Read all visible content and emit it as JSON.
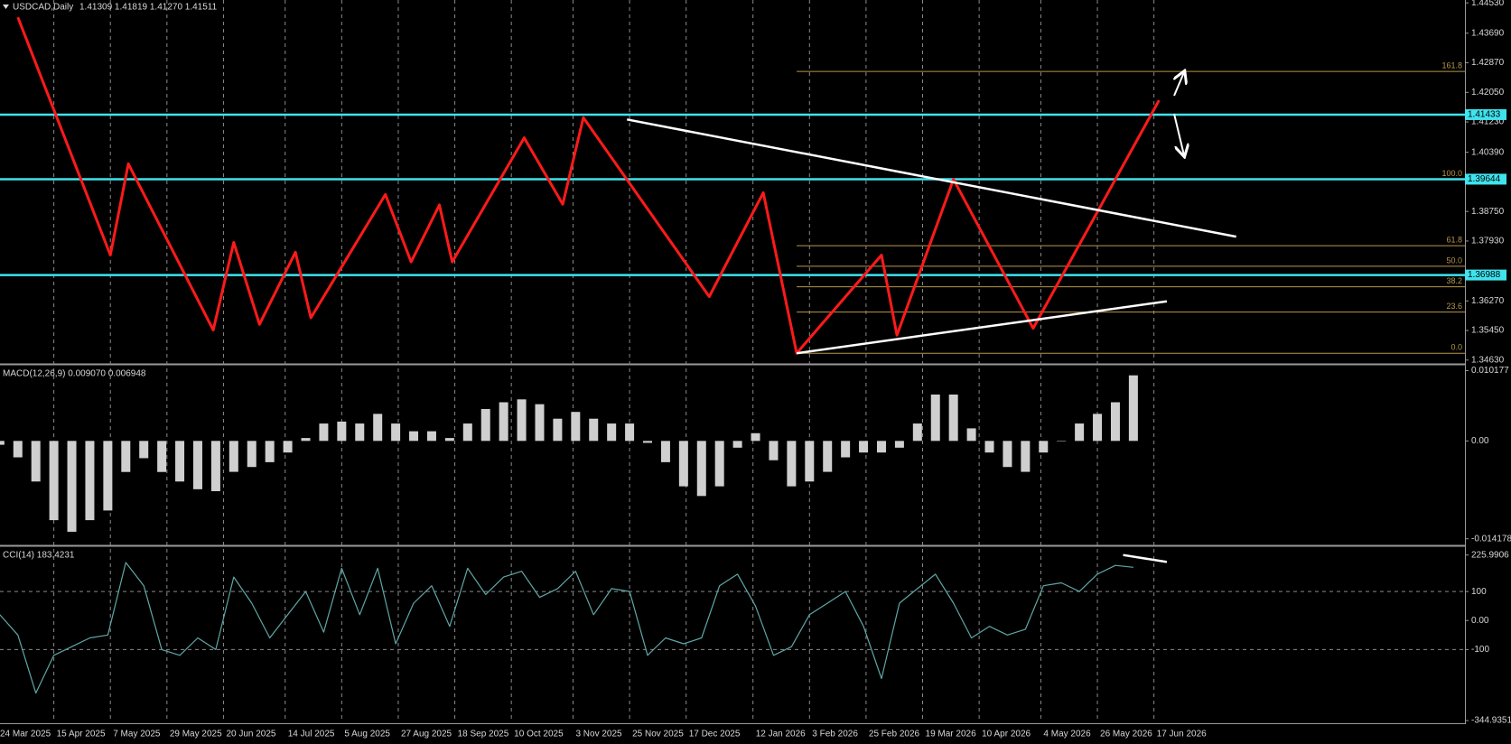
{
  "chart_data": [
    {
      "type": "line",
      "title": "USDCAD,Daily",
      "subtitle": "1.41309 1.41819 1.41270 1.41511",
      "x": [
        "2025-04-01",
        "2025-05-07",
        "2025-05-14",
        "2025-06-16",
        "2025-06-24",
        "2025-07-04",
        "2025-07-18",
        "2025-07-24",
        "2025-08-22",
        "2025-09-01",
        "2025-09-12",
        "2025-09-17",
        "2025-10-15",
        "2025-10-30",
        "2025-11-07",
        "2025-12-26",
        "2026-01-16",
        "2026-01-29",
        "2026-03-03",
        "2026-03-09",
        "2026-03-31",
        "2026-05-01",
        "2026-06-19"
      ],
      "values": [
        1.4413,
        1.3754,
        1.4007,
        1.3546,
        1.3789,
        1.3562,
        1.3762,
        1.358,
        1.3922,
        1.3735,
        1.3893,
        1.3735,
        1.4079,
        1.3895,
        1.4135,
        1.3639,
        1.3927,
        1.3482,
        1.3754,
        1.3532,
        1.3964,
        1.3551,
        1.4183
      ],
      "color": "#ff1a1a",
      "xlim": [
        "2025-03-24",
        "2026-10-16"
      ],
      "xticks": [
        {
          "value": "2025-03-24",
          "label": "24 Mar 2025"
        },
        {
          "value": "2025-04-15",
          "label": "15 Apr 2025"
        },
        {
          "value": "2025-05-07",
          "label": "7 May 2025"
        },
        {
          "value": "2025-05-29",
          "label": "29 May 2025"
        },
        {
          "value": "2025-06-20",
          "label": "20 Jun 2025"
        },
        {
          "value": "2025-07-14",
          "label": "14 Jul 2025"
        },
        {
          "value": "2025-08-05",
          "label": "5 Aug 2025"
        },
        {
          "value": "2025-08-27",
          "label": "27 Aug 2025"
        },
        {
          "value": "2025-09-18",
          "label": "18 Sep 2025"
        },
        {
          "value": "2025-10-10",
          "label": "10 Oct 2025"
        },
        {
          "value": "2025-11-03",
          "label": "3 Nov 2025"
        },
        {
          "value": "2025-11-25",
          "label": "25 Nov 2025"
        },
        {
          "value": "2025-12-17",
          "label": "17 Dec 2025"
        },
        {
          "value": "2026-01-12",
          "label": "12 Jan 2026"
        },
        {
          "value": "2026-02-03",
          "label": "3 Feb 2026"
        },
        {
          "value": "2026-02-25",
          "label": "25 Feb 2026"
        },
        {
          "value": "2026-03-19",
          "label": "19 Mar 2026"
        },
        {
          "value": "2026-04-10",
          "label": "10 Apr 2026"
        },
        {
          "value": "2026-05-04",
          "label": "4 May 2026"
        },
        {
          "value": "2026-05-26",
          "label": "26 May 2026"
        },
        {
          "value": "2026-06-17",
          "label": "17 Jun 2026"
        }
      ],
      "grid": "x",
      "ylim": [
        1.3455,
        1.4461
      ],
      "yticks": [
        {
          "value": 1.4453,
          "label": "1.44530"
        },
        {
          "value": 1.4369,
          "label": "1.43690"
        },
        {
          "value": 1.4287,
          "label": "1.42870"
        },
        {
          "value": 1.4205,
          "label": "1.42050"
        },
        {
          "value": 1.4123,
          "label": "1.41230"
        },
        {
          "value": 1.4039,
          "label": "1.40390"
        },
        {
          "value": 1.3875,
          "label": "1.38750"
        },
        {
          "value": 1.3793,
          "label": "1.37930"
        },
        {
          "value": 1.3627,
          "label": "1.36270"
        },
        {
          "value": 1.3545,
          "label": "1.35450"
        },
        {
          "value": 1.3463,
          "label": "1.34630"
        }
      ],
      "levels": [
        {
          "value": 1.41433,
          "label": "1.41433"
        },
        {
          "value": 1.39644,
          "label": "1.39644"
        },
        {
          "value": 1.36988,
          "label": "1.36988"
        }
      ],
      "level_color": "#3fe3ee",
      "fibonacci": {
        "color": "#b8964a",
        "levels": [
          {
            "value": 1.4263,
            "label": "161.8"
          },
          {
            "value": 1.3964,
            "label": "100.0"
          },
          {
            "value": 1.378,
            "label": "61.8"
          },
          {
            "value": 1.3723,
            "label": "50.0"
          },
          {
            "value": 1.3666,
            "label": "38.2"
          },
          {
            "value": 1.3596,
            "label": "23.6"
          },
          {
            "value": 1.3482,
            "label": "0.0"
          }
        ]
      },
      "trendline_color": "#ffffff",
      "trendlines": [
        {
          "x": [
            "2025-11-24",
            "2026-07-19"
          ],
          "values": [
            1.413,
            1.3805
          ]
        },
        {
          "x": [
            "2026-01-29",
            "2026-06-22"
          ],
          "values": [
            1.3482,
            1.3626
          ]
        }
      ]
    },
    {
      "type": "bar",
      "title": "MACD(12,26,9) 0.009070 0.006948",
      "x": [
        "2025-03-25",
        "2025-04-01",
        "2025-04-08",
        "2025-04-15",
        "2025-04-22",
        "2025-04-29",
        "2025-05-06",
        "2025-05-13",
        "2025-05-20",
        "2025-05-27",
        "2025-06-03",
        "2025-06-10",
        "2025-06-17",
        "2025-06-24",
        "2025-07-01",
        "2025-07-08",
        "2025-07-15",
        "2025-07-22",
        "2025-07-29",
        "2025-08-05",
        "2025-08-12",
        "2025-08-19",
        "2025-08-26",
        "2025-09-02",
        "2025-09-09",
        "2025-09-16",
        "2025-09-23",
        "2025-09-30",
        "2025-10-07",
        "2025-10-14",
        "2025-10-21",
        "2025-10-28",
        "2025-11-04",
        "2025-11-11",
        "2025-11-18",
        "2025-11-25",
        "2025-12-02",
        "2025-12-09",
        "2025-12-16",
        "2025-12-23",
        "2025-12-30",
        "2026-01-06",
        "2026-01-13",
        "2026-01-20",
        "2026-01-27",
        "2026-02-03",
        "2026-02-10",
        "2026-02-17",
        "2026-02-24",
        "2026-03-03",
        "2026-03-10",
        "2026-03-17",
        "2026-03-24",
        "2026-03-31",
        "2026-04-07",
        "2026-04-14",
        "2026-04-21",
        "2026-04-28",
        "2026-05-05",
        "2026-05-12",
        "2026-05-19",
        "2026-05-26",
        "2026-06-02",
        "2026-06-09"
      ],
      "values": [
        -0.00056,
        -0.00238,
        -0.00588,
        -0.01148,
        -0.01316,
        -0.01148,
        -0.01008,
        -0.0045,
        -0.0025,
        -0.0045,
        -0.00588,
        -0.007,
        -0.00728,
        -0.00448,
        -0.00378,
        -0.00308,
        -0.00168,
        0.00042,
        0.00252,
        0.0028,
        0.00252,
        0.00392,
        0.00252,
        0.0014,
        0.0014,
        0.00042,
        0.00252,
        0.00462,
        0.0056,
        0.00602,
        0.00532,
        0.00322,
        0.0042,
        0.00322,
        0.00252,
        0.00252,
        -0.00028,
        -0.00308,
        -0.00658,
        -0.00798,
        -0.00658,
        -0.00098,
        0.00112,
        -0.0028,
        -0.00658,
        -0.00588,
        -0.00448,
        -0.00238,
        -0.00168,
        -0.00168,
        -0.00098,
        0.00252,
        0.00672,
        0.00672,
        0.00182,
        -0.00168,
        -0.00378,
        -0.00448,
        -0.00168,
        0,
        0.00252,
        0.00392,
        0.0056,
        0.0095
      ],
      "color": "#cfcfcf",
      "xlim": [
        "2025-03-24",
        "2026-10-16"
      ],
      "ylim": [
        -0.015,
        0.0109
      ],
      "yticks": [
        0.010177,
        {
          "value": 0,
          "label": "0.00"
        },
        -0.014178
      ]
    },
    {
      "type": "line",
      "title": "CCI(14) 183.4231",
      "x": [
        "2025-03-25",
        "2025-04-01",
        "2025-04-08",
        "2025-04-15",
        "2025-04-22",
        "2025-04-29",
        "2025-05-06",
        "2025-05-13",
        "2025-05-20",
        "2025-05-27",
        "2025-06-03",
        "2025-06-10",
        "2025-06-17",
        "2025-06-24",
        "2025-07-01",
        "2025-07-08",
        "2025-07-15",
        "2025-07-22",
        "2025-07-29",
        "2025-08-05",
        "2025-08-12",
        "2025-08-19",
        "2025-08-26",
        "2025-09-02",
        "2025-09-09",
        "2025-09-16",
        "2025-09-23",
        "2025-09-30",
        "2025-10-07",
        "2025-10-14",
        "2025-10-21",
        "2025-10-28",
        "2025-11-04",
        "2025-11-11",
        "2025-11-18",
        "2025-11-25",
        "2025-12-02",
        "2025-12-09",
        "2025-12-16",
        "2025-12-23",
        "2025-12-30",
        "2026-01-06",
        "2026-01-13",
        "2026-01-20",
        "2026-01-27",
        "2026-02-03",
        "2026-02-10",
        "2026-02-17",
        "2026-02-24",
        "2026-03-03",
        "2026-03-10",
        "2026-03-17",
        "2026-03-24",
        "2026-03-31",
        "2026-04-07",
        "2026-04-14",
        "2026-04-21",
        "2026-04-28",
        "2026-05-05",
        "2026-05-12",
        "2026-05-19",
        "2026-05-26",
        "2026-06-02",
        "2026-06-09"
      ],
      "values": [
        20,
        -50,
        -250,
        -120,
        -90,
        -60,
        -50,
        200,
        120,
        -100,
        -120,
        -60,
        -100,
        150,
        60,
        -60,
        20,
        100,
        -40,
        180,
        20,
        180,
        -80,
        60,
        120,
        -20,
        180,
        90,
        150,
        170,
        80,
        110,
        170,
        20,
        110,
        100,
        -120,
        -60,
        -80,
        -60,
        120,
        160,
        50,
        -120,
        -90,
        20,
        60,
        100,
        -20,
        -200,
        60,
        110,
        160,
        60,
        -60,
        -20,
        -50,
        -30,
        120,
        130,
        100,
        160,
        190,
        183.4231
      ],
      "color": "#5fa7a7",
      "xlim": [
        "2025-03-24",
        "2026-10-16"
      ],
      "ylim": [
        -351,
        253
      ],
      "yticks": [
        225.9906,
        100,
        {
          "value": 0,
          "label": "0.00"
        },
        -100,
        -344.9351
      ],
      "levels": [
        100,
        -100
      ],
      "trendline_color": "#ffffff",
      "trendlines": [
        {
          "x": [
            "2026-06-05",
            "2026-06-22"
          ],
          "values": [
            226,
            202
          ]
        }
      ]
    }
  ]
}
